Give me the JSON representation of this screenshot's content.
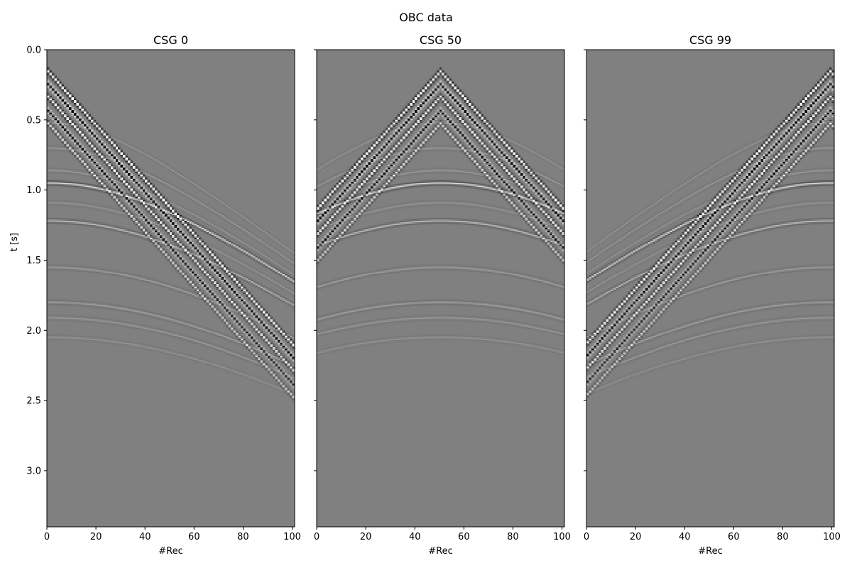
{
  "figure": {
    "suptitle": "OBC data"
  },
  "chart_data": [
    {
      "type": "heatmap",
      "title": "CSG 0",
      "xlabel": "#Rec",
      "ylabel": "t [s]",
      "colormap": "gray",
      "source_receiver": 0,
      "xlim": [
        0,
        101
      ],
      "ylim": [
        3.4,
        0.0
      ],
      "xticks": [
        0,
        20,
        40,
        60,
        80,
        100
      ],
      "yticks": [
        0.0,
        0.5,
        1.0,
        1.5,
        2.0,
        2.5,
        3.0
      ],
      "ytick_labels": [
        "0.0",
        "0.5",
        "1.0",
        "1.5",
        "2.0",
        "2.5",
        "3.0"
      ],
      "grid": false
    },
    {
      "type": "heatmap",
      "title": "CSG 50",
      "xlabel": "#Rec",
      "ylabel": "",
      "colormap": "gray",
      "source_receiver": 50,
      "xlim": [
        0,
        101
      ],
      "ylim": [
        3.4,
        0.0
      ],
      "xticks": [
        0,
        20,
        40,
        60,
        80,
        100
      ],
      "yticks": [
        0.0,
        0.5,
        1.0,
        1.5,
        2.0,
        2.5,
        3.0
      ],
      "ytick_labels": [],
      "grid": false
    },
    {
      "type": "heatmap",
      "title": "CSG 99",
      "xlabel": "#Rec",
      "ylabel": "",
      "colormap": "gray",
      "source_receiver": 99,
      "xlim": [
        0,
        101
      ],
      "ylim": [
        3.4,
        0.0
      ],
      "xticks": [
        0,
        20,
        40,
        60,
        80,
        100
      ],
      "yticks": [
        0.0,
        0.5,
        1.0,
        1.5,
        2.0,
        2.5,
        3.0
      ],
      "ytick_labels": [],
      "grid": false
    }
  ]
}
